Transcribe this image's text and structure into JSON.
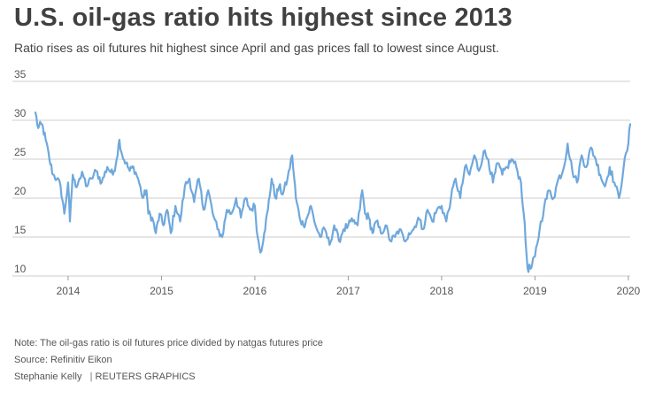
{
  "header": {
    "title": "U.S. oil-gas ratio hits highest since 2013",
    "subtitle": "Ratio rises as oil futures hit highest since April and gas prices fall to lowest since August."
  },
  "footer": {
    "note": "Note: The oil-gas ratio is oil futures price divided by natgas futures price",
    "source": "Source: Refinitiv Eikon",
    "author": "Stephanie Kelly",
    "separator": "|",
    "credit": "REUTERS GRAPHICS"
  },
  "colors": {
    "line": "#6fa8dc",
    "grid": "#cccccc",
    "axis": "#999999"
  },
  "chart_data": {
    "type": "line",
    "title": "U.S. oil-gas ratio hits highest since 2013",
    "xlabel": "",
    "ylabel": "",
    "ylim": [
      10,
      35
    ],
    "yticks": [
      10,
      15,
      20,
      25,
      30,
      35
    ],
    "xlim": [
      2013.65,
      2020.02
    ],
    "xticks": [
      2014,
      2015,
      2016,
      2017,
      2018,
      2019,
      2020
    ],
    "xtick_labels": [
      "2014",
      "2015",
      "2016",
      "2017",
      "2018",
      "2019",
      "2020"
    ],
    "grid": true,
    "series": [
      {
        "name": "Oil-gas ratio",
        "x": [
          2013.65,
          2013.68,
          2013.72,
          2013.76,
          2013.8,
          2013.84,
          2013.88,
          2013.92,
          2013.96,
          2014.0,
          2014.02,
          2014.05,
          2014.08,
          2014.12,
          2014.16,
          2014.2,
          2014.25,
          2014.3,
          2014.36,
          2014.42,
          2014.48,
          2014.52,
          2014.55,
          2014.58,
          2014.62,
          2014.66,
          2014.7,
          2014.75,
          2014.8,
          2014.84,
          2014.86,
          2014.9,
          2014.94,
          2014.98,
          2015.02,
          2015.06,
          2015.1,
          2015.15,
          2015.2,
          2015.25,
          2015.3,
          2015.35,
          2015.4,
          2015.45,
          2015.5,
          2015.55,
          2015.6,
          2015.65,
          2015.7,
          2015.75,
          2015.8,
          2015.85,
          2015.9,
          2015.95,
          2016.0,
          2016.03,
          2016.06,
          2016.1,
          2016.14,
          2016.18,
          2016.22,
          2016.26,
          2016.3,
          2016.35,
          2016.4,
          2016.44,
          2016.48,
          2016.52,
          2016.56,
          2016.6,
          2016.65,
          2016.7,
          2016.75,
          2016.8,
          2016.85,
          2016.9,
          2016.95,
          2017.0,
          2017.05,
          2017.1,
          2017.15,
          2017.18,
          2017.22,
          2017.26,
          2017.3,
          2017.35,
          2017.4,
          2017.45,
          2017.5,
          2017.55,
          2017.6,
          2017.65,
          2017.7,
          2017.75,
          2017.8,
          2017.85,
          2017.9,
          2017.95,
          2018.0,
          2018.05,
          2018.1,
          2018.15,
          2018.2,
          2018.25,
          2018.3,
          2018.35,
          2018.4,
          2018.45,
          2018.5,
          2018.55,
          2018.6,
          2018.65,
          2018.7,
          2018.75,
          2018.8,
          2018.85,
          2018.88,
          2018.92,
          2018.96,
          2019.0,
          2019.05,
          2019.1,
          2019.15,
          2019.2,
          2019.25,
          2019.3,
          2019.35,
          2019.4,
          2019.45,
          2019.5,
          2019.55,
          2019.6,
          2019.65,
          2019.7,
          2019.75,
          2019.8,
          2019.85,
          2019.9,
          2019.95,
          2020.0,
          2020.02
        ],
        "values": [
          31.0,
          29.0,
          29.5,
          27.5,
          25.0,
          23.0,
          22.5,
          21.5,
          18.0,
          22.0,
          17.0,
          23.0,
          21.5,
          22.5,
          23.0,
          21.5,
          22.5,
          23.5,
          22.0,
          24.0,
          23.0,
          25.0,
          27.5,
          25.5,
          24.5,
          23.5,
          24.0,
          22.5,
          20.0,
          21.0,
          18.0,
          17.5,
          15.5,
          18.0,
          16.5,
          18.5,
          15.5,
          19.0,
          17.0,
          21.5,
          22.5,
          19.5,
          22.5,
          18.5,
          21.0,
          18.0,
          16.0,
          15.0,
          18.5,
          18.0,
          20.0,
          17.5,
          20.0,
          18.5,
          19.0,
          15.0,
          13.0,
          15.5,
          18.5,
          22.5,
          20.0,
          21.5,
          20.5,
          22.5,
          25.5,
          20.0,
          17.5,
          16.5,
          17.5,
          19.0,
          16.5,
          15.0,
          16.0,
          14.0,
          16.5,
          14.5,
          16.0,
          16.5,
          17.0,
          16.5,
          21.0,
          18.0,
          17.5,
          15.5,
          17.0,
          15.5,
          16.5,
          14.5,
          15.0,
          16.0,
          14.5,
          15.5,
          16.0,
          17.5,
          16.0,
          18.5,
          17.0,
          18.5,
          19.0,
          17.0,
          20.0,
          22.5,
          20.0,
          24.0,
          23.0,
          25.5,
          23.5,
          26.0,
          25.0,
          22.0,
          24.5,
          23.0,
          24.0,
          25.0,
          24.0,
          22.0,
          18.0,
          11.0,
          11.0,
          12.5,
          16.0,
          19.0,
          21.0,
          20.0,
          22.5,
          23.5,
          27.0,
          23.5,
          22.0,
          25.5,
          24.0,
          26.5,
          25.0,
          23.0,
          21.5,
          24.0,
          22.0,
          20.0,
          24.0,
          27.0,
          29.5
        ]
      }
    ]
  }
}
